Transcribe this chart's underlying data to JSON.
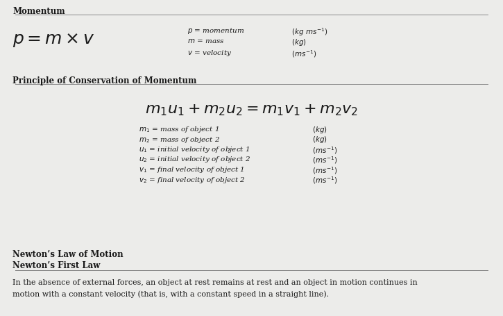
{
  "bg_color": "#ececea",
  "text_color": "#1a1a1a",
  "line_color": "#888888",
  "section1_heading": "Momentum",
  "section1_formula": "$p = m \\times v$",
  "section1_vars_label": [
    "$p$ = momentum",
    "$m$ = mass",
    "$v$ = velocity"
  ],
  "section1_vars_unit": [
    "$(kg\\ ms^{-1})$",
    "$(kg)$",
    "$(ms^{-1})$"
  ],
  "section2_heading": "Principle of Conservation of Momentum",
  "section2_formula": "$m_1u_1 + m_2u_2 = m_1v_1 + m_2v_2$",
  "section2_vars_label": [
    "$m_1$ = mass of object 1",
    "$m_2$ = mass of object 2",
    "$u_1$ = initial velocity of object 1",
    "$u_2$ = initial velocity of object 2",
    "$v_1$ = final velocity of object 1",
    "$v_2$ = final velocity of object 2"
  ],
  "section2_vars_unit": [
    "$(kg)$",
    "$(kg)$",
    "$(ms^{-1})$",
    "$(ms^{-1})$",
    "$(ms^{-1})$",
    "$(ms^{-1})$"
  ],
  "section3_heading1": "Newton’s Law of Motion",
  "section3_heading2": "Newton’s First Law",
  "section3_line1": "In the absence of external forces, an object at rest remains at rest and an object in motion continues in",
  "section3_line2": "motion with a constant velocity (that is, with a constant speed in a straight line)."
}
